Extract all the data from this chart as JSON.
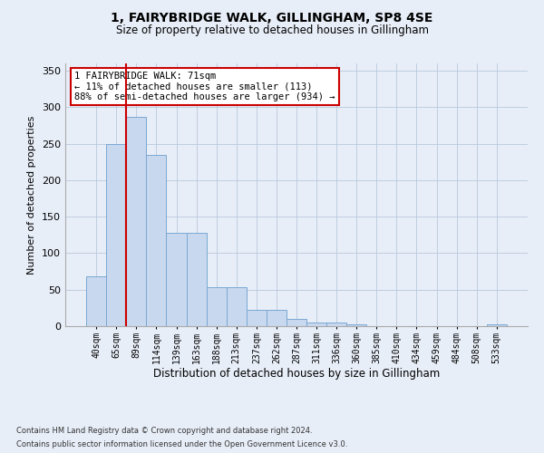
{
  "title": "1, FAIRYBRIDGE WALK, GILLINGHAM, SP8 4SE",
  "subtitle": "Size of property relative to detached houses in Gillingham",
  "xlabel": "Distribution of detached houses by size in Gillingham",
  "ylabel": "Number of detached properties",
  "bar_labels": [
    "40sqm",
    "65sqm",
    "89sqm",
    "114sqm",
    "139sqm",
    "163sqm",
    "188sqm",
    "213sqm",
    "237sqm",
    "262sqm",
    "287sqm",
    "311sqm",
    "336sqm",
    "360sqm",
    "385sqm",
    "410sqm",
    "434sqm",
    "459sqm",
    "484sqm",
    "508sqm",
    "533sqm"
  ],
  "bar_values": [
    68,
    250,
    287,
    235,
    128,
    128,
    53,
    53,
    22,
    22,
    10,
    5,
    5,
    2,
    0,
    0,
    0,
    0,
    0,
    0,
    3
  ],
  "bar_color": "#c8d8ee",
  "bar_edge_color": "#7aa8d4",
  "vline_x": 1.5,
  "vline_color": "#cc0000",
  "annotation_text": "1 FAIRYBRIDGE WALK: 71sqm\n← 11% of detached houses are smaller (113)\n88% of semi-detached houses are larger (934) →",
  "annotation_box_color": "#ffffff",
  "annotation_box_edge_color": "#cc0000",
  "ylim": [
    0,
    360
  ],
  "yticks": [
    0,
    50,
    100,
    150,
    200,
    250,
    300,
    350
  ],
  "footnote1": "Contains HM Land Registry data © Crown copyright and database right 2024.",
  "footnote2": "Contains public sector information licensed under the Open Government Licence v3.0.",
  "bg_color": "#e8eef8",
  "plot_bg_color": "#e8eef8"
}
